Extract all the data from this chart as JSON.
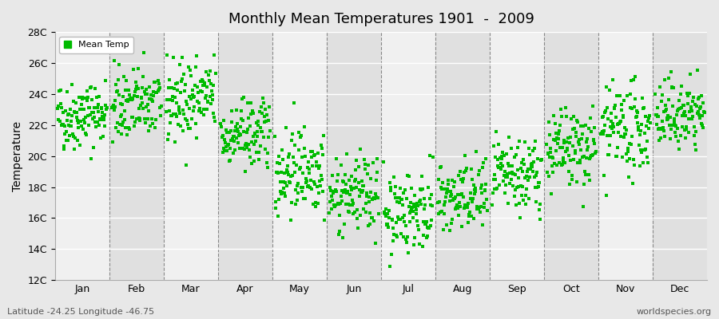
{
  "title": "Monthly Mean Temperatures 1901  -  2009",
  "ylabel": "Temperature",
  "footer_left": "Latitude -24.25 Longitude -46.75",
  "footer_right": "worldspecies.org",
  "legend_label": "Mean Temp",
  "background_color": "#e8e8e8",
  "plot_bg_light": "#f0f0f0",
  "plot_bg_dark": "#e0e0e0",
  "marker_color": "#00bb00",
  "marker": "s",
  "marker_size": 2.5,
  "ylim": [
    12,
    28
  ],
  "yticks": [
    12,
    14,
    16,
    18,
    20,
    22,
    24,
    26,
    28
  ],
  "months": [
    "Jan",
    "Feb",
    "Mar",
    "Apr",
    "May",
    "Jun",
    "Jul",
    "Aug",
    "Sep",
    "Oct",
    "Nov",
    "Dec"
  ],
  "n_years": 109,
  "monthly_means": [
    22.5,
    23.2,
    23.5,
    21.2,
    19.0,
    17.3,
    16.3,
    17.1,
    18.5,
    20.2,
    21.5,
    22.5
  ],
  "monthly_stds": [
    1.1,
    1.2,
    1.3,
    1.1,
    1.4,
    1.2,
    1.3,
    1.2,
    1.2,
    1.3,
    1.4,
    1.1
  ],
  "monthly_trends": [
    0.003,
    0.003,
    0.003,
    0.003,
    0.003,
    0.003,
    0.003,
    0.003,
    0.003,
    0.003,
    0.003,
    0.003
  ],
  "seed": 42
}
